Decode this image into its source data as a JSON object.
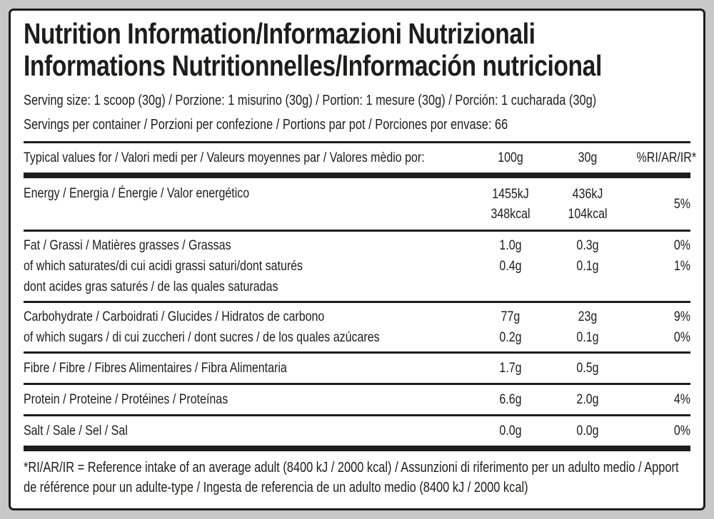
{
  "colors": {
    "ink": "#1d1d1b",
    "page_bg": "#c8c8c8",
    "label_bg": "#ffffff"
  },
  "title": {
    "line1": "Nutrition Information/Informazioni Nutrizionali",
    "line2": "Informations Nutritionnelles/Información nutricional"
  },
  "serving": {
    "size": "Serving size: 1 scoop (30g) / Porzione: 1 misurino (30g) / Portion: 1 mesure (30g) / Porción: 1 cucharada (30g)",
    "per_container": "Servings per container / Porzioni per confezione / Portions par pot / Porciones por envase: 66"
  },
  "table": {
    "header": {
      "label": "Typical values for / Valori medi per / Valeurs moyennes par / Valores mèdio por:",
      "col_100g": "100g",
      "col_30g": "30g",
      "col_ri": "%RI/AR/IR*"
    },
    "energy": {
      "label": "Energy / Energia / Énergie / Valor energético",
      "v100_kj": "1455kJ",
      "v100_kcal": "348kcal",
      "v30_kj": "436kJ",
      "v30_kcal": "104kcal",
      "ri": "5%"
    },
    "fat": [
      {
        "label": "Fat / Grassi / Matières grasses / Grassas",
        "v100": "1.0g",
        "v30": "0.3g",
        "ri": "0%"
      },
      {
        "label": "of which saturates/di cui acidi grassi saturi/dont saturés",
        "v100": "0.4g",
        "v30": "0.1g",
        "ri": "1%"
      },
      {
        "label": "dont acides gras saturés / de las quales saturadas",
        "v100": "",
        "v30": "",
        "ri": ""
      }
    ],
    "carbohydrate": [
      {
        "label": "Carbohydrate / Carboidrati / Glucides / Hidratos de carbono",
        "v100": "77g",
        "v30": "23g",
        "ri": "9%"
      },
      {
        "label": "of which sugars / di cui zuccheri / dont sucres / de los quales azúcares",
        "v100": "0.2g",
        "v30": "0.1g",
        "ri": "0%"
      }
    ],
    "fibre": {
      "label": "Fibre / Fibre / Fibres Alimentaires / Fibra Alimentaria",
      "v100": "1.7g",
      "v30": "0.5g",
      "ri": ""
    },
    "protein": {
      "label": "Protein / Proteine / Protéines / Proteínas",
      "v100": "6.6g",
      "v30": "2.0g",
      "ri": "4%"
    },
    "salt": {
      "label": "Salt / Sale / Sel / Sal",
      "v100": "0.0g",
      "v30": "0.0g",
      "ri": "0%"
    }
  },
  "footnote": "*RI/AR/IR = Reference intake of an average adult (8400 kJ / 2000 kcal)  / Assunzioni di riferimento per un adulto medio / Apport de référence pour un adulte-type / Ingesta de referencia de un adulto medio (8400 kJ / 2000 kcal)"
}
